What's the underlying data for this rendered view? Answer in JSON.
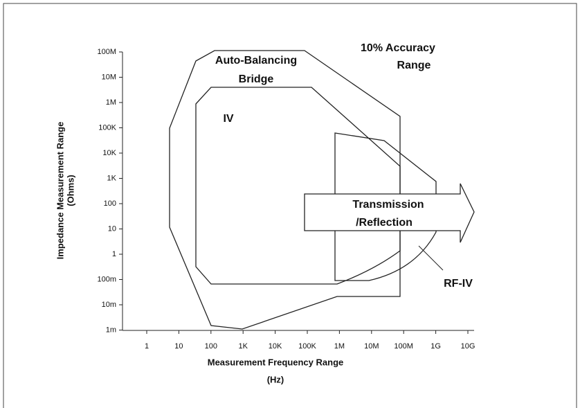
{
  "chart": {
    "y_axis": {
      "title": [
        "Impedance Measurement Range",
        "(Ohms)"
      ],
      "ticks": [
        "100M",
        "10M",
        "1M",
        "100K",
        "10K",
        "1K",
        "100",
        "10",
        "1",
        "100m",
        "10m",
        "1m"
      ]
    },
    "x_axis": {
      "title": [
        "Measurement Frequency Range",
        "(Hz)"
      ],
      "ticks": [
        "1",
        "10",
        "100",
        "1K",
        "10K",
        "100K",
        "1M",
        "10M",
        "100M",
        "1G",
        "10G"
      ]
    },
    "regions": {
      "auto_balancing_bridge": [
        "Auto-Balancing",
        "Bridge"
      ],
      "iv": "IV",
      "rf_iv": "RF-IV",
      "transmission_reflection": [
        "Transmission",
        "/Reflection"
      ]
    },
    "note": [
      "10% Accuracy",
      "Range"
    ]
  }
}
